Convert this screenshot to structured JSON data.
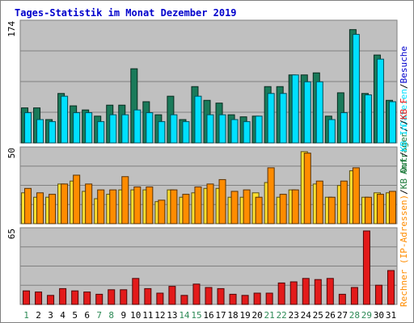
{
  "title": "Tages-Statistik im Monat Dezember 2019",
  "colors": {
    "title": "#0000cc",
    "panel_bg": "#c0c0c0",
    "page_bg": "#ffffff",
    "frame": "#808080",
    "grid": "#808080",
    "weekday_label": "#1c7a3a",
    "weekend_label": "#2e8b57",
    "hits": "#1a7a5a",
    "files": "#00e0ff",
    "visits": "#ffe030",
    "kbytes": "#ff8c00",
    "kb_out": "#e31a1a"
  },
  "chart_data": {
    "type": "bar",
    "categories": [
      "1",
      "2",
      "3",
      "4",
      "5",
      "6",
      "7",
      "8",
      "9",
      "10",
      "11",
      "12",
      "13",
      "14",
      "15",
      "16",
      "17",
      "18",
      "19",
      "20",
      "21",
      "22",
      "23",
      "24",
      "25",
      "26",
      "27",
      "28",
      "29",
      "30",
      "31"
    ],
    "weekend_days": [
      1,
      7,
      8,
      14,
      15,
      21,
      22,
      28,
      29
    ],
    "panels": [
      {
        "id": "requests",
        "ymax_label": "174",
        "ymax": 174,
        "series": [
          {
            "name": "Anfragen",
            "color_key": "hits",
            "values": [
              51,
              51,
              34,
              72,
              54,
              48,
              39,
              55,
              55,
              108,
              60,
              41,
              68,
              34,
              82,
              62,
              58,
              41,
              38,
              39,
              82,
              82,
              99,
              99,
              102,
              39,
              73,
              165,
              72,
              128,
              62
            ]
          },
          {
            "name": "Dateien",
            "color_key": "files",
            "values": [
              44,
              34,
              31,
              68,
              44,
              44,
              31,
              41,
              41,
              48,
              44,
              31,
              41,
              31,
              68,
              41,
              41,
              34,
              31,
              39,
              72,
              72,
              99,
              89,
              89,
              34,
              44,
              158,
              70,
              122,
              60
            ]
          }
        ]
      },
      {
        "id": "visits",
        "ymax_label": "50",
        "ymax": 50,
        "series": [
          {
            "name": "Rechner (IP-Adressen)",
            "color_key": "visits",
            "values": [
              21,
              18,
              18,
              27,
              29,
              22,
              17,
              20,
              23,
              23,
              23,
              15,
              23,
              18,
              21,
              24,
              24,
              18,
              18,
              21,
              28,
              18,
              23,
              49,
              27,
              18,
              26,
              36,
              18,
              21,
              21
            ]
          },
          {
            "name": "Besuche",
            "color_key": "kbytes",
            "values": [
              24,
              21,
              20,
              27,
              33,
              27,
              23,
              23,
              32,
              25,
              25,
              16,
              23,
              20,
              25,
              27,
              30,
              22,
              23,
              18,
              38,
              20,
              23,
              48,
              29,
              18,
              29,
              38,
              18,
              20,
              22
            ]
          }
        ]
      },
      {
        "id": "kbytes",
        "ymax_label": "65",
        "ymax": 65,
        "series": [
          {
            "name": "KB F",
            "color_key": "kb_out",
            "values": [
              12,
              11,
              8,
              14,
              12,
              11,
              9,
              13,
              13,
              23,
              14,
              10,
              16,
              8,
              18,
              15,
              14,
              9,
              8,
              10,
              10,
              19,
              20,
              23,
              22,
              23,
              9,
              15,
              65,
              17,
              30
            ]
          }
        ]
      }
    ],
    "legend_right": {
      "panel1": [
        {
          "text": "Anfragen",
          "color_key": "weekday_label"
        },
        {
          "text": "Dateien",
          "color_key": "files"
        },
        {
          "text": "Besuche",
          "color_key": "title"
        }
      ],
      "panel2": [
        {
          "text": "Rechner (IP-Adressen)",
          "color_key": "kbytes"
        },
        {
          "text": "KB Out",
          "color_key": "weekday_label"
        },
        {
          "text": "KB In",
          "color_key": "files"
        },
        {
          "text": "KB F",
          "color_key": "kb_out"
        }
      ]
    }
  }
}
